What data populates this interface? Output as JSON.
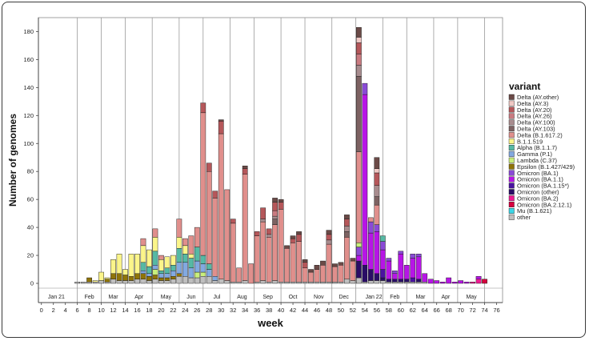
{
  "chart_data": {
    "type": "bar",
    "stacked": true,
    "xlabel": "week",
    "ylabel": "Number of genomes",
    "xlim": [
      -0.5,
      77
    ],
    "ylim": [
      0,
      190
    ],
    "xticks": [
      0,
      2,
      4,
      6,
      8,
      10,
      12,
      14,
      16,
      18,
      20,
      22,
      24,
      26,
      28,
      30,
      32,
      34,
      36,
      38,
      40,
      42,
      44,
      46,
      48,
      50,
      52,
      54,
      56,
      58,
      60,
      62,
      64,
      66,
      68,
      70,
      72,
      74,
      76
    ],
    "yticks": [
      0,
      20,
      40,
      60,
      80,
      100,
      120,
      140,
      160,
      180
    ],
    "month_boundaries": [
      6,
      10,
      14,
      18.5,
      23,
      27,
      31.5,
      35.5,
      40,
      44,
      48.5,
      52.5,
      57,
      61,
      65.5,
      69.5,
      74
    ],
    "month_labels": [
      {
        "x": 2.5,
        "label": "Jan 21"
      },
      {
        "x": 8,
        "label": "Feb"
      },
      {
        "x": 12,
        "label": "Mar"
      },
      {
        "x": 16.3,
        "label": "Apr"
      },
      {
        "x": 20.8,
        "label": "May"
      },
      {
        "x": 25,
        "label": "Jun"
      },
      {
        "x": 29.3,
        "label": "Jul"
      },
      {
        "x": 33.5,
        "label": "Aug"
      },
      {
        "x": 37.8,
        "label": "Sep"
      },
      {
        "x": 42,
        "label": "Oct"
      },
      {
        "x": 46.3,
        "label": "Nov"
      },
      {
        "x": 50.5,
        "label": "Dec"
      },
      {
        "x": 55.5,
        "label": "Jan 22"
      },
      {
        "x": 59,
        "label": "Feb"
      },
      {
        "x": 63.3,
        "label": "Mar"
      },
      {
        "x": 67.5,
        "label": "Apr"
      },
      {
        "x": 71.8,
        "label": "May"
      }
    ],
    "legend_title": "variant",
    "legend_position": "right",
    "grid": false,
    "variants": [
      {
        "name": "Delta (AY.other)",
        "color": "#6b4a47"
      },
      {
        "name": "Delta (AY.3)",
        "color": "#f0c8c4"
      },
      {
        "name": "Delta (AY.20)",
        "color": "#b5575a"
      },
      {
        "name": "Delta (AY.26)",
        "color": "#c97a80"
      },
      {
        "name": "Delta (AY.100)",
        "color": "#a88c8e"
      },
      {
        "name": "Delta (AY.103)",
        "color": "#7d6262"
      },
      {
        "name": "Delta (B.1.617.2)",
        "color": "#e08f8c"
      },
      {
        "name": "B.1.1.519",
        "color": "#fbf58a"
      },
      {
        "name": "Alpha (B.1.1.7)",
        "color": "#56b9a4"
      },
      {
        "name": "Gamma (P.1)",
        "color": "#82a9e0"
      },
      {
        "name": "Lambda (C.37)",
        "color": "#c9ef7c"
      },
      {
        "name": "Epsilon (B.1.427/429)",
        "color": "#8f7408"
      },
      {
        "name": "Omicron (BA.1)",
        "color": "#8a4ad6"
      },
      {
        "name": "Omicron (BA.1.1)",
        "color": "#b715e6"
      },
      {
        "name": "Omicron (BA.1.15*)",
        "color": "#4a12a0"
      },
      {
        "name": "Omicron (other)",
        "color": "#2a0d66"
      },
      {
        "name": "Omicron (BA.2)",
        "color": "#ee1a92"
      },
      {
        "name": "Omicron (BA.2.12.1)",
        "color": "#d6003e"
      },
      {
        "name": "Mu (B.1.621)",
        "color": "#3ad6e6"
      },
      {
        "name": "other",
        "color": "#bfbfbf"
      }
    ],
    "weeks": [
      {
        "w": 6,
        "v": {
          "other": 1
        }
      },
      {
        "w": 7,
        "v": {
          "other": 1
        }
      },
      {
        "w": 8,
        "v": {
          "Epsilon (B.1.427/429)": 3,
          "other": 1
        }
      },
      {
        "w": 9,
        "v": {
          "other": 1,
          "B.1.1.519": 1
        }
      },
      {
        "w": 10,
        "v": {
          "B.1.1.519": 6,
          "other": 2
        }
      },
      {
        "w": 11,
        "v": {
          "Epsilon (B.1.427/429)": 2,
          "other": 1,
          "B.1.1.519": 1
        }
      },
      {
        "w": 12,
        "v": {
          "other": 3,
          "Epsilon (B.1.427/429)": 4,
          "B.1.1.519": 10
        }
      },
      {
        "w": 13,
        "v": {
          "other": 2,
          "Epsilon (B.1.427/429)": 5,
          "B.1.1.519": 14
        }
      },
      {
        "w": 14,
        "v": {
          "other": 2,
          "Epsilon (B.1.427/429)": 4,
          "B.1.1.519": 4
        }
      },
      {
        "w": 15,
        "v": {
          "other": 2,
          "Epsilon (B.1.427/429)": 3,
          "B.1.1.519": 16
        }
      },
      {
        "w": 16,
        "v": {
          "other": 3,
          "Epsilon (B.1.427/429)": 4,
          "B.1.1.519": 14
        }
      },
      {
        "w": 17,
        "v": {
          "other": 3,
          "Epsilon (B.1.427/429)": 4,
          "Gamma (P.1)": 2,
          "B.1.1.519": 12,
          "Alpha (B.1.1.7)": 6,
          "Delta (B.1.617.2)": 5
        }
      },
      {
        "w": 18,
        "v": {
          "other": 2,
          "Epsilon (B.1.427/429)": 3,
          "Gamma (P.1)": 2,
          "B.1.1.519": 12,
          "Alpha (B.1.1.7)": 5
        }
      },
      {
        "w": 19,
        "v": {
          "other": 3,
          "Epsilon (B.1.427/429)": 3,
          "Gamma (P.1)": 3,
          "B.1.1.519": 10,
          "Lambda (C.37)": 4,
          "Alpha (B.1.1.7)": 10,
          "Delta (B.1.617.2)": 6
        }
      },
      {
        "w": 20,
        "v": {
          "other": 2,
          "Epsilon (B.1.427/429)": 2,
          "Gamma (P.1)": 3,
          "B.1.1.519": 8,
          "Alpha (B.1.1.7)": 2,
          "Delta (B.1.617.2)": 3
        }
      },
      {
        "w": 21,
        "v": {
          "other": 2,
          "Epsilon (B.1.427/429)": 2,
          "Gamma (P.1)": 3,
          "B.1.1.519": 8,
          "Alpha (B.1.1.7)": 4
        }
      },
      {
        "w": 22,
        "v": {
          "other": 3,
          "Epsilon (B.1.427/429)": 2,
          "Gamma (P.1)": 4,
          "B.1.1.519": 7,
          "Alpha (B.1.1.7)": 4
        }
      },
      {
        "w": 23,
        "v": {
          "other": 5,
          "Epsilon (B.1.427/429)": 2,
          "Gamma (P.1)": 8,
          "B.1.1.519": 8,
          "Alpha (B.1.1.7)": 10,
          "Delta (B.1.617.2)": 13
        }
      },
      {
        "w": 24,
        "v": {
          "other": 5,
          "Gamma (P.1)": 10,
          "B.1.1.519": 6,
          "Alpha (B.1.1.7)": 6,
          "Delta (B.1.617.2)": 5
        }
      },
      {
        "w": 25,
        "v": {
          "other": 4,
          "Gamma (P.1)": 7,
          "B.1.1.519": 3,
          "Alpha (B.1.1.7)": 7,
          "Delta (B.1.617.2)": 13
        }
      },
      {
        "w": 26,
        "v": {
          "other": 4,
          "Gamma (P.1)": 8,
          "Lambda (C.37)": 4,
          "Alpha (B.1.1.7)": 10,
          "Delta (B.1.617.2)": 14
        }
      },
      {
        "w": 27,
        "v": {
          "other": 5,
          "Gamma (P.1)": 6,
          "Lambda (C.37)": 3,
          "Alpha (B.1.1.7)": 6,
          "Delta (B.1.617.2)": 102,
          "Delta (AY.20)": 7
        }
      },
      {
        "w": 28,
        "v": {
          "other": 5,
          "Gamma (P.1)": 5,
          "Alpha (B.1.1.7)": 4,
          "Delta (B.1.617.2)": 66,
          "Delta (AY.20)": 6
        }
      },
      {
        "w": 29,
        "v": {
          "other": 2,
          "Gamma (P.1)": 3,
          "Delta (B.1.617.2)": 56,
          "Delta (AY.20)": 5
        }
      },
      {
        "w": 30,
        "v": {
          "other": 3,
          "Delta (AY.other)": 1,
          "Delta (B.1.617.2)": 104,
          "Delta (AY.20)": 9
        }
      },
      {
        "w": 31,
        "v": {
          "other": 2,
          "Delta (B.1.617.2)": 65
        }
      },
      {
        "w": 32,
        "v": {
          "other": 1,
          "Delta (B.1.617.2)": 42,
          "Delta (AY.20)": 3
        }
      },
      {
        "w": 33,
        "v": {
          "other": 1,
          "Delta (B.1.617.2)": 10
        }
      },
      {
        "w": 34,
        "v": {
          "other": 2,
          "Delta (B.1.617.2)": 76,
          "Delta (AY.20)": 4,
          "Delta (AY.other)": 2
        }
      },
      {
        "w": 35,
        "v": {
          "Delta (B.1.617.2)": 14
        }
      },
      {
        "w": 36,
        "v": {
          "other": 1,
          "Delta (B.1.617.2)": 33,
          "Delta (AY.20)": 3
        }
      },
      {
        "w": 37,
        "v": {
          "other": 2,
          "Delta (AY.100)": 2,
          "Delta (B.1.617.2)": 42,
          "Delta (AY.20)": 8
        }
      },
      {
        "w": 38,
        "v": {
          "other": 1,
          "Delta (AY.100)": 2,
          "Delta (B.1.617.2)": 32,
          "Delta (AY.20)": 4
        }
      },
      {
        "w": 39,
        "v": {
          "other": 2,
          "Delta (AY.other)": 3,
          "Delta (AY.100)": 2,
          "Delta (B.1.617.2)": 40,
          "Delta (AY.20)": 6,
          "Delta (AY.26)": 4,
          "Delta (AY.103)": 4
        }
      },
      {
        "w": 40,
        "v": {
          "other": 1,
          "Delta (AY.other)": 2,
          "Delta (B.1.617.2)": 52,
          "Delta (AY.20)": 5
        }
      },
      {
        "w": 41,
        "v": {
          "other": 1,
          "Delta (AY.other)": 2,
          "Delta (B.1.617.2)": 24
        }
      },
      {
        "w": 42,
        "v": {
          "other": 1,
          "Delta (AY.other)": 2,
          "Delta (B.1.617.2)": 28,
          "Delta (AY.20)": 3
        }
      },
      {
        "w": 43,
        "v": {
          "other": 1,
          "Delta (AY.other)": 2,
          "Delta (B.1.617.2)": 29,
          "Delta (AY.20)": 5
        }
      },
      {
        "w": 44,
        "v": {
          "other": 1,
          "Delta (AY.other)": 2,
          "Delta (B.1.617.2)": 10,
          "Delta (AY.20)": 4
        }
      },
      {
        "w": 45,
        "v": {
          "other": 1,
          "Delta (AY.other)": 2,
          "Delta (B.1.617.2)": 7
        }
      },
      {
        "w": 46,
        "v": {
          "other": 1,
          "Delta (AY.other)": 3,
          "Delta (B.1.617.2)": 9
        }
      },
      {
        "w": 47,
        "v": {
          "other": 1,
          "Delta (AY.other)": 3,
          "Delta (B.1.617.2)": 12
        }
      },
      {
        "w": 48,
        "v": {
          "other": 1,
          "Delta (AY.other)": 3,
          "Delta (AY.100)": 3,
          "Delta (B.1.617.2)": 27,
          "Delta (AY.20)": 4
        }
      },
      {
        "w": 49,
        "v": {
          "other": 1,
          "Delta (AY.other)": 2,
          "Delta (B.1.617.2)": 11
        }
      },
      {
        "w": 50,
        "v": {
          "other": 1,
          "Delta (AY.other)": 2,
          "Delta (B.1.617.2)": 12
        }
      },
      {
        "w": 51,
        "v": {
          "other": 3,
          "Delta (AY.other)": 3,
          "Delta (AY.100)": 4,
          "Delta (B.1.617.2)": 30,
          "Delta (AY.20)": 5,
          "Delta (AY.103)": 4
        }
      },
      {
        "w": 52,
        "v": {
          "other": 2,
          "Delta (AY.other)": 2,
          "Delta (B.1.617.2)": 14
        }
      },
      {
        "w": 53,
        "v": {
          "other": 4,
          "Omicron (other)": 12,
          "Omicron (BA.1)": 6,
          "Omicron (BA.1.1)": 4,
          "Delta (AY.103)": 54,
          "Lambda (C.37)": 3,
          "Delta (B.1.617.2)": 65,
          "Delta (AY.20)": 8,
          "Delta (AY.100)": 8,
          "Delta (AY.26)": 8,
          "Delta (AY.3)": 4,
          "Delta (AY.other)": 7
        }
      },
      {
        "w": 54,
        "v": {
          "other": 1,
          "Omicron (other)": 12,
          "Omicron (BA.1)": 8,
          "Omicron (BA.1.1)": 122
        }
      },
      {
        "w": 55,
        "v": {
          "other": 2,
          "Delta (B.1.617.2)": 3,
          "Omicron (other)": 8,
          "Omicron (BA.1)": 8,
          "Omicron (BA.1.1)": 26
        }
      },
      {
        "w": 56,
        "v": {
          "other": 2,
          "Omicron (other)": 5,
          "Omicron (BA.1)": 5,
          "Omicron (BA.1.1)": 30,
          "Delta (AY.103)": 6,
          "Delta (B.1.617.2)": 14,
          "Delta (AY.100)": 8,
          "Delta (AY.20)": 9,
          "Delta (AY.other)": 8,
          "Delta (AY.3)": 3
        }
      },
      {
        "w": 57,
        "v": {
          "other": 2,
          "Omicron (other)": 2,
          "Omicron (BA.1.15*)": 6,
          "Omicron (BA.1)": 6,
          "Alpha (B.1.1.7)": 4,
          "Omicron (BA.1.1)": 14
        }
      },
      {
        "w": 58,
        "v": {
          "other": 1,
          "Omicron (other)": 2,
          "Omicron (BA.1)": 2,
          "Omicron (BA.1.1)": 13
        }
      },
      {
        "w": 59,
        "v": {
          "other": 1,
          "Omicron (other)": 2,
          "Omicron (BA.1)": 2,
          "Omicron (BA.1.1)": 4
        }
      },
      {
        "w": 60,
        "v": {
          "other": 1,
          "Omicron (other)": 2,
          "Omicron (BA.1)": 2,
          "Omicron (BA.1.1)": 18
        }
      },
      {
        "w": 61,
        "v": {
          "other": 1,
          "Omicron (other)": 2,
          "Omicron (BA.1.1)": 10
        }
      },
      {
        "w": 62,
        "v": {
          "other": 1,
          "Omicron (BA.1.15*)": 3,
          "Omicron (BA.1)": 3,
          "Omicron (BA.1.1)": 14
        }
      },
      {
        "w": 63,
        "v": {
          "other": 1,
          "Omicron (other)": 2,
          "Omicron (BA.1)": 2,
          "Omicron (BA.1.1)": 16
        }
      },
      {
        "w": 64,
        "v": {
          "other": 1,
          "Omicron (BA.1.1)": 6
        }
      },
      {
        "w": 65,
        "v": {
          "Omicron (BA.1.1)": 3
        }
      },
      {
        "w": 66,
        "v": {
          "Omicron (BA.1.1)": 2
        }
      },
      {
        "w": 67,
        "v": {
          "Omicron (BA.1.1)": 1
        }
      },
      {
        "w": 68,
        "v": {
          "Omicron (BA.1.1)": 4
        }
      },
      {
        "w": 69,
        "v": {
          "Omicron (BA.1.1)": 1
        }
      },
      {
        "w": 70,
        "v": {
          "Omicron (BA.1.1)": 2
        }
      },
      {
        "w": 71,
        "v": {
          "Omicron (BA.1.1)": 1
        }
      },
      {
        "w": 72,
        "v": {
          "Omicron (BA.2)": 1
        }
      },
      {
        "w": 73,
        "v": {
          "Omicron (BA.2)": 3,
          "Omicron (BA.1.1)": 2
        }
      },
      {
        "w": 74,
        "v": {
          "Omicron (BA.2.12.1)": 3
        }
      }
    ]
  }
}
